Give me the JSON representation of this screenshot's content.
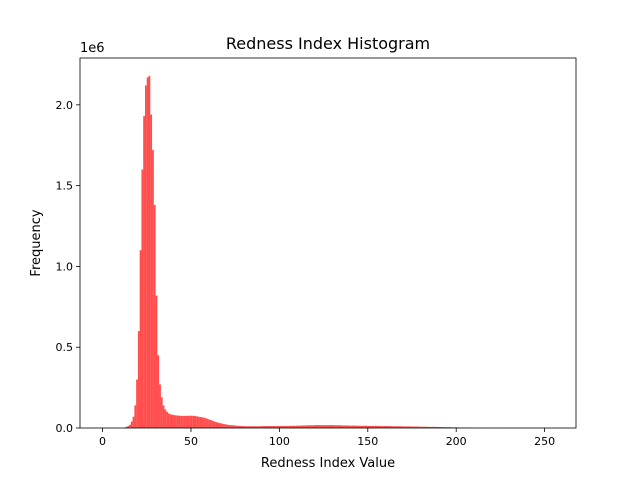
{
  "chart_data": {
    "type": "bar",
    "title": "Redness Index Histogram",
    "xlabel": "Redness Index Value",
    "ylabel": "Frequency",
    "y_offset_label": "1e6",
    "x_ticks": [
      0,
      50,
      100,
      150,
      200,
      250
    ],
    "x_tick_labels": [
      "0",
      "50",
      "100",
      "150",
      "200",
      "250"
    ],
    "y_ticks": [
      0,
      0.5,
      1.0,
      1.5,
      2.0
    ],
    "y_tick_labels": [
      "0.0",
      "0.5",
      "1.0",
      "1.5",
      "2.0"
    ],
    "y_scale": 1000000,
    "xlim": [
      -12.75,
      267.75
    ],
    "ylim": [
      0,
      2.29
    ],
    "grid": false,
    "legend": false,
    "bar_color": "#ff0000",
    "bar_alpha": 0.7,
    "bin_start": 0,
    "bin_width": 1,
    "values": [
      0,
      0,
      0,
      0,
      0,
      0,
      0,
      0,
      0,
      0,
      0,
      0,
      0.003,
      0.007,
      0.012,
      0.02,
      0.04,
      0.07,
      0.14,
      0.3,
      0.6,
      1.1,
      1.6,
      1.93,
      2.12,
      2.17,
      2.18,
      1.94,
      1.72,
      1.38,
      0.82,
      0.45,
      0.27,
      0.19,
      0.14,
      0.115,
      0.1,
      0.09,
      0.085,
      0.082,
      0.08,
      0.078,
      0.077,
      0.076,
      0.075,
      0.075,
      0.075,
      0.075,
      0.076,
      0.076,
      0.076,
      0.075,
      0.074,
      0.072,
      0.07,
      0.068,
      0.066,
      0.064,
      0.06,
      0.056,
      0.052,
      0.048,
      0.044,
      0.04,
      0.036,
      0.033,
      0.03,
      0.028,
      0.025,
      0.023,
      0.021,
      0.019,
      0.018,
      0.017,
      0.016,
      0.015,
      0.014,
      0.013,
      0.012,
      0.012,
      0.011,
      0.011,
      0.011,
      0.011,
      0.011,
      0.011,
      0.011,
      0.011,
      0.011,
      0.011,
      0.012,
      0.012,
      0.012,
      0.012,
      0.012,
      0.012,
      0.012,
      0.012,
      0.012,
      0.012,
      0.013,
      0.013,
      0.013,
      0.013,
      0.013,
      0.013,
      0.014,
      0.014,
      0.014,
      0.014,
      0.015,
      0.015,
      0.015,
      0.016,
      0.016,
      0.016,
      0.017,
      0.017,
      0.017,
      0.017,
      0.018,
      0.018,
      0.018,
      0.018,
      0.018,
      0.018,
      0.018,
      0.018,
      0.018,
      0.018,
      0.018,
      0.017,
      0.017,
      0.017,
      0.017,
      0.016,
      0.016,
      0.016,
      0.016,
      0.015,
      0.015,
      0.015,
      0.015,
      0.015,
      0.014,
      0.014,
      0.014,
      0.014,
      0.014,
      0.014,
      0.013,
      0.013,
      0.013,
      0.013,
      0.013,
      0.013,
      0.013,
      0.012,
      0.012,
      0.012,
      0.012,
      0.012,
      0.012,
      0.011,
      0.011,
      0.011,
      0.011,
      0.011,
      0.011,
      0.01,
      0.01,
      0.01,
      0.01,
      0.01,
      0.009,
      0.009,
      0.009,
      0.009,
      0.009,
      0.008,
      0.008,
      0.008,
      0.008,
      0.008,
      0.007,
      0.007,
      0.007,
      0.007,
      0.007,
      0.006,
      0.006,
      0.006,
      0.006,
      0.005,
      0.005,
      0.005,
      0.005,
      0.004,
      0.004,
      0.004,
      0.004,
      0.003,
      0.003,
      0.003,
      0.002,
      0.002,
      0.002,
      0.002,
      0.001,
      0.001,
      0.001,
      0.001,
      0.001,
      0.0005,
      0.0005,
      0.0005,
      0.0003,
      0.0003,
      0.0002,
      0.0002,
      0.0001,
      0.0001,
      0.0001,
      0.0001,
      0.0001,
      0.0001,
      0,
      0,
      0,
      0,
      0,
      0,
      0,
      0,
      0,
      0,
      0,
      0,
      0,
      0,
      0,
      0,
      0,
      0,
      0,
      0,
      0,
      0,
      0,
      0,
      0,
      0,
      0,
      0,
      0,
      0
    ]
  }
}
